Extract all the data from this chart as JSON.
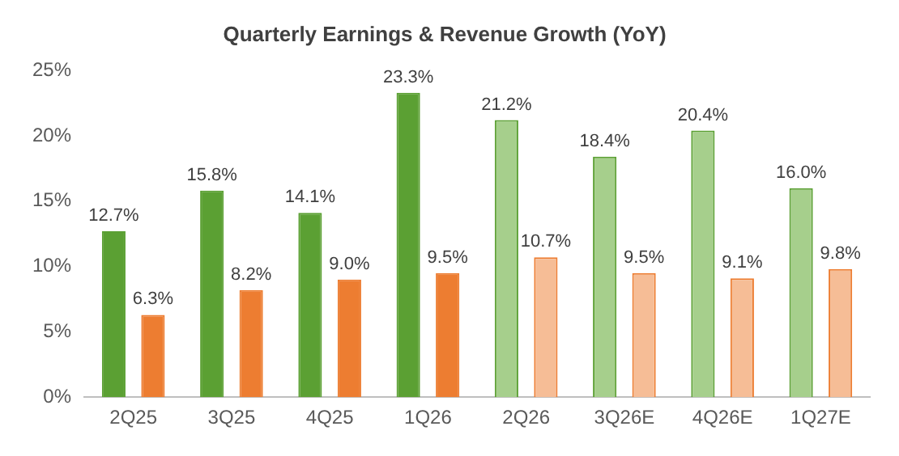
{
  "chart_data": {
    "type": "bar",
    "title": "Quarterly Earnings & Revenue Growth (YoY)",
    "categories": [
      "2Q25",
      "3Q25",
      "4Q25",
      "1Q26",
      "2Q26",
      "3Q26E",
      "4Q26E",
      "1Q27E"
    ],
    "series": [
      {
        "color": "#5ba033",
        "colors": [
          "#5ba033",
          "#5ba033",
          "#5ba033",
          "#5ba033",
          "#a6cf8c",
          "#a6cf8c",
          "#a6cf8c",
          "#a6cf8c"
        ],
        "values": [
          12.7,
          15.8,
          14.1,
          23.3,
          21.2,
          18.4,
          20.4,
          16.0
        ],
        "value_labels": [
          "12.7%",
          "15.8%",
          "14.1%",
          "23.3%",
          "21.2%",
          "18.4%",
          "20.4%",
          "16.0%"
        ]
      },
      {
        "color": "#ed7d31",
        "colors": [
          "#ed7d31",
          "#ed7d31",
          "#ed7d31",
          "#ed7d31",
          "#f6bd96",
          "#f6bd96",
          "#f6bd96",
          "#f6bd96"
        ],
        "values": [
          6.3,
          8.2,
          9.0,
          9.5,
          10.7,
          9.5,
          9.1,
          9.8
        ],
        "value_labels": [
          "6.3%",
          "8.2%",
          "9.0%",
          "9.5%",
          "10.7%",
          "9.5%",
          "9.1%",
          "9.8%"
        ]
      }
    ],
    "ylim": [
      0,
      25
    ],
    "yticks": [
      {
        "value": 0,
        "label": "0%"
      },
      {
        "value": 5,
        "label": "5%"
      },
      {
        "value": 10,
        "label": "10%"
      },
      {
        "value": 15,
        "label": "15%"
      },
      {
        "value": 20,
        "label": "20%"
      },
      {
        "value": 25,
        "label": "25%"
      }
    ],
    "grid": false,
    "legend": false
  }
}
